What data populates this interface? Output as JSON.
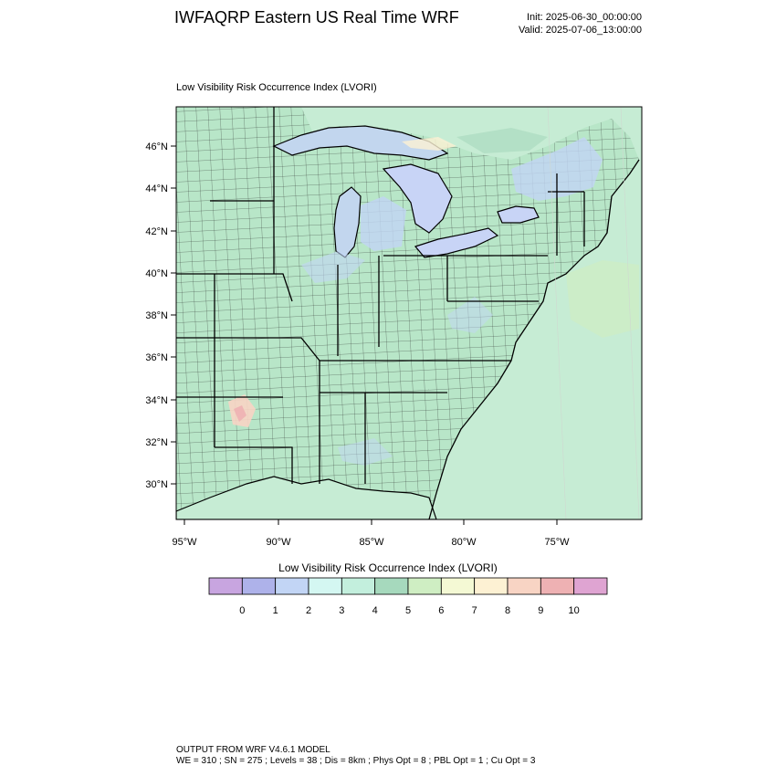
{
  "header": {
    "title": "IWFAQRP Eastern US Real Time WRF",
    "init": "Init: 2025-06-30_00:00:00",
    "valid": "Valid: 2025-07-06_13:00:00"
  },
  "map": {
    "title": "Low Visibility Risk Occurrence Index   (LVORI)",
    "lat_labels": [
      "46°N",
      "44°N",
      "42°N",
      "40°N",
      "38°N",
      "36°N",
      "34°N",
      "32°N",
      "30°N"
    ],
    "lon_labels": [
      "95°W",
      "90°W",
      "85°W",
      "80°W",
      "75°W"
    ],
    "colors": {
      "land_base": "#b8e6c8",
      "water": "#c5d8f5",
      "lakes": "#c8d4f6",
      "county_lines": "#222222",
      "state_lines": "#000000"
    }
  },
  "colorbar": {
    "title": "Low Visibility Risk Occurrence Index  (LVORI)",
    "colors": [
      "#c8a5e0",
      "#aeb2ea",
      "#c2d5f5",
      "#d4f7f2",
      "#c3efdd",
      "#a6d9bd",
      "#cfeec3",
      "#f4f9d4",
      "#fdf1d3",
      "#f8d4c4",
      "#eeb1b3",
      "#dfa4d2"
    ],
    "labels": [
      "0",
      "1",
      "2",
      "3",
      "4",
      "5",
      "6",
      "7",
      "8",
      "9",
      "10"
    ]
  },
  "footer": {
    "line1": "OUTPUT FROM WRF V4.6.1 MODEL",
    "line2": "WE = 310 ; SN = 275 ; Levels = 38 ; Dis = 8km ; Phys Opt = 8 ; PBL Opt = 1 ; Cu Opt = 3"
  }
}
